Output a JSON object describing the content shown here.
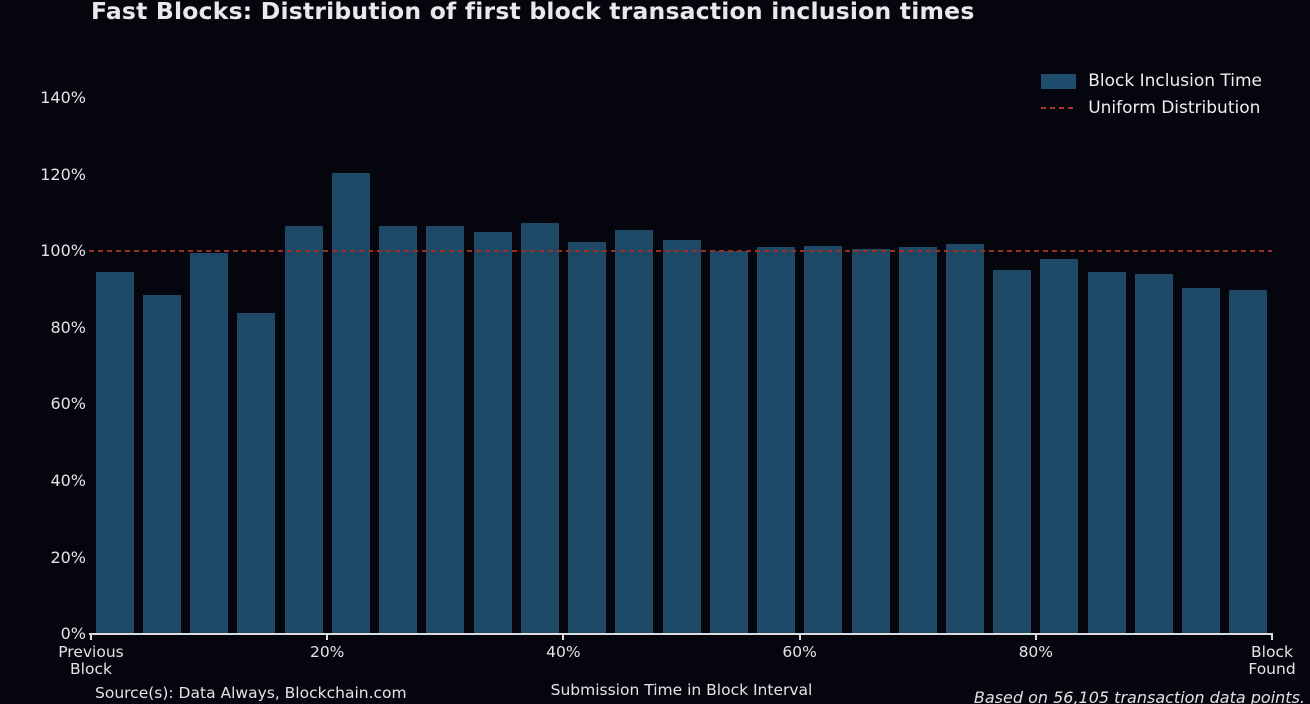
{
  "title": "Fast Blocks: Distribution of first block transaction inclusion times",
  "legend": {
    "bar_label": "Block Inclusion Time",
    "line_label": "Uniform Distribution"
  },
  "footer": {
    "source": "Source(s): Data Always, Blockchain.com",
    "xlabel": "Submission Time in Block Interval",
    "note": "Based on 56,105 transaction data points."
  },
  "colors": {
    "background": "#05050e",
    "bar": "#1d4866",
    "uniform_line": "#9c2f25",
    "text": "#e2e4e8",
    "axis": "#dcdcdc"
  },
  "chart_data": {
    "type": "bar",
    "title": "Fast Blocks: Distribution of first block transaction inclusion times",
    "xlabel": "Submission Time in Block Interval",
    "ylabel": "",
    "bin_width_pct": 4,
    "bin_centers_pct": [
      2,
      6,
      10,
      14,
      18,
      22,
      26,
      30,
      34,
      38,
      42,
      46,
      50,
      54,
      58,
      62,
      66,
      70,
      74,
      78,
      82,
      86,
      90,
      94,
      98
    ],
    "values": [
      94.5,
      88.5,
      99.5,
      84.0,
      106.5,
      120.5,
      106.5,
      106.5,
      105.0,
      107.5,
      102.5,
      105.5,
      103.0,
      100.0,
      101.0,
      101.5,
      100.5,
      101.0,
      102.0,
      95.0,
      98.0,
      94.5,
      94.0,
      90.5,
      90.0
    ],
    "series_name": "Block Inclusion Time",
    "reference_line": {
      "label": "Uniform Distribution",
      "y": 100,
      "style": "dashed",
      "color": "#9c2f25"
    },
    "ylim": [
      0,
      150
    ],
    "grid": false,
    "legend_position": "upper right",
    "y_axis": {
      "tick_values": [
        0,
        20,
        40,
        60,
        80,
        100,
        120,
        140
      ],
      "tick_labels": [
        "0%",
        "20%",
        "40%",
        "60%",
        "80%",
        "100%",
        "120%",
        "140%"
      ]
    },
    "x_axis": {
      "ticks": [
        {
          "pos": 0.0,
          "lines": [
            "Previous",
            "Block"
          ]
        },
        {
          "pos": 0.2,
          "lines": [
            "20%"
          ]
        },
        {
          "pos": 0.4,
          "lines": [
            "40%"
          ]
        },
        {
          "pos": 0.6,
          "lines": [
            "60%"
          ]
        },
        {
          "pos": 0.8,
          "lines": [
            "80%"
          ]
        },
        {
          "pos": 1.0,
          "lines": [
            "Block",
            "Found"
          ]
        }
      ]
    }
  }
}
